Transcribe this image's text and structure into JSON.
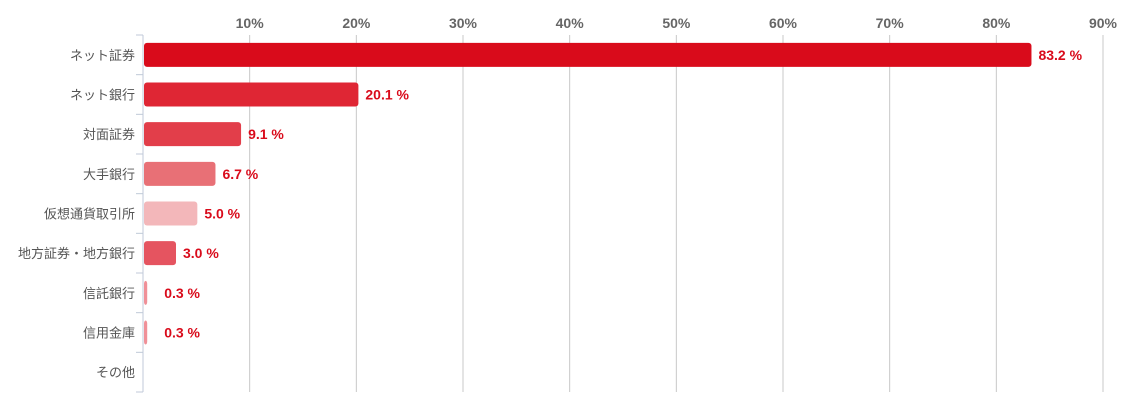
{
  "chart_data": {
    "type": "bar",
    "orientation": "horizontal",
    "title": "",
    "xlabel": "",
    "ylabel": "",
    "xlim": [
      0,
      90
    ],
    "x_ticks": [
      10,
      20,
      30,
      40,
      50,
      60,
      70,
      80,
      90
    ],
    "tick_suffix": "%",
    "grid": true,
    "categories": [
      "ネット証券",
      "ネット銀行",
      "対面証券",
      "大手銀行",
      "仮想通貨取引所",
      "地方証券・地方銀行",
      "信託銀行",
      "信用金庫",
      "その他"
    ],
    "values": [
      83.2,
      20.1,
      9.1,
      6.7,
      5.0,
      3.0,
      0.3,
      0.3,
      null
    ],
    "value_labels": [
      "83.2 %",
      "20.1 %",
      "9.1 %",
      "6.7 %",
      "5.0 %",
      "3.0 %",
      "0.3 %",
      "0.3 %",
      ""
    ],
    "bar_colors": [
      "#d90b1b",
      "#df2634",
      "#e23e4a",
      "#e87076",
      "#f3b7ba",
      "#e55460",
      "#f09098",
      "#f09098",
      "#f09098"
    ],
    "label_color": "#d90b1b"
  }
}
